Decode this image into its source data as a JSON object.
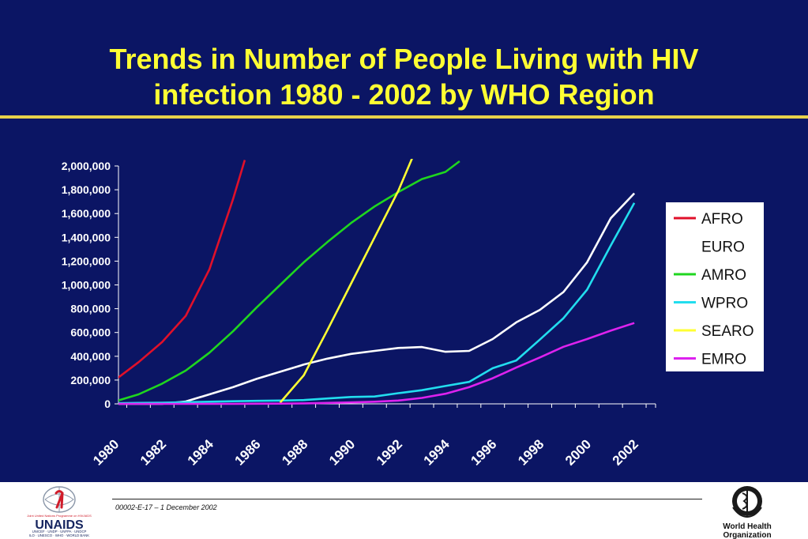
{
  "title_line1": "Trends in Number of People Living with HIV",
  "title_line2": "infection 1980 - 2002 by WHO Region",
  "footer": {
    "code": "00002-E-17 – 1 December 2002",
    "unaids_brand": "UNAIDS",
    "unaids_tagline": "Joint United Nations Programme on HIV/AIDS",
    "unaids_sponsors1": "UNICEF · UNDP · UNFPA · UNDCP",
    "unaids_sponsors2": "ILO · UNESCO · WHO · WORLD BANK",
    "who_name_line1": "World Health",
    "who_name_line2": "Organization"
  },
  "colors": {
    "background": "#0b1564",
    "title": "#ffff33",
    "rule": "#e8d24a",
    "axis": "#ffffff",
    "legend_bg": "#ffffff"
  },
  "chart_data": {
    "type": "line",
    "x_tick_labels": [
      "1980",
      "1982",
      "1984",
      "1986",
      "1988",
      "1990",
      "1992",
      "1994",
      "1996",
      "1998",
      "2000",
      "2002"
    ],
    "y_tick_labels": [
      "0",
      "200,000",
      "400,000",
      "600,000",
      "800,000",
      "1,000,000",
      "1,200,000",
      "1,400,000",
      "1,600,000",
      "1,800,000",
      "2,000,000"
    ],
    "ylim": [
      0,
      2000000
    ],
    "legend_position": "right",
    "series": [
      {
        "name": "AFRO",
        "color": "#e0102a",
        "x": [
          1980,
          1981,
          1982,
          1983,
          1984,
          1985,
          1985.5
        ],
        "y": [
          200000,
          350000,
          520000,
          740000,
          1130000,
          1720000,
          2050000
        ]
      },
      {
        "name": "EURO",
        "color": "#ffffff",
        "x": [
          1980,
          1981,
          1982,
          1983,
          1984,
          1985,
          1986,
          1987,
          1988,
          1989,
          1990,
          1991,
          1992,
          1993,
          1994,
          1995,
          1996,
          1997,
          1998,
          1999,
          2000,
          2001,
          2002
        ],
        "y": [
          0,
          0,
          0,
          20000,
          80000,
          140000,
          210000,
          270000,
          330000,
          380000,
          420000,
          445000,
          470000,
          478000,
          438000,
          445000,
          545000,
          685000,
          790000,
          940000,
          1190000,
          1560000,
          1770000
        ]
      },
      {
        "name": "AMRO",
        "color": "#1fd61f",
        "x": [
          1980,
          1981,
          1982,
          1983,
          1984,
          1985,
          1986,
          1987,
          1988,
          1989,
          1990,
          1991,
          1992,
          1993,
          1994,
          1994.6
        ],
        "y": [
          20000,
          80000,
          170000,
          280000,
          430000,
          610000,
          810000,
          1000000,
          1190000,
          1360000,
          1520000,
          1660000,
          1780000,
          1890000,
          1950000,
          2040000
        ]
      },
      {
        "name": "WPRO",
        "color": "#22ddee",
        "x": [
          1980,
          1981,
          1982,
          1983,
          1984,
          1985,
          1986,
          1987,
          1988,
          1989,
          1990,
          1991,
          1992,
          1993,
          1994,
          1995,
          1996,
          1997,
          1998,
          1999,
          2000,
          2001,
          2002
        ],
        "y": [
          5000,
          8000,
          10000,
          14000,
          18000,
          22000,
          25000,
          28000,
          32000,
          45000,
          58000,
          62000,
          90000,
          115000,
          150000,
          185000,
          300000,
          365000,
          540000,
          720000,
          960000,
          1330000,
          1690000
        ]
      },
      {
        "name": "SEARO",
        "color": "#ffff33",
        "x": [
          1987,
          1988,
          1989,
          1990,
          1991,
          1992,
          1992.6
        ],
        "y": [
          10000,
          240000,
          620000,
          1010000,
          1400000,
          1790000,
          2070000
        ]
      },
      {
        "name": "EMRO",
        "color": "#dd22ee",
        "x": [
          1980,
          1981,
          1982,
          1983,
          1984,
          1985,
          1986,
          1987,
          1988,
          1989,
          1990,
          1991,
          1992,
          1993,
          1994,
          1995,
          1996,
          1997,
          1998,
          1999,
          2000,
          2001,
          2002
        ],
        "y": [
          0,
          0,
          0,
          0,
          0,
          0,
          1000,
          2000,
          4000,
          8000,
          12000,
          18000,
          28000,
          50000,
          85000,
          140000,
          215000,
          305000,
          390000,
          480000,
          545000,
          615000,
          680000
        ]
      }
    ]
  }
}
